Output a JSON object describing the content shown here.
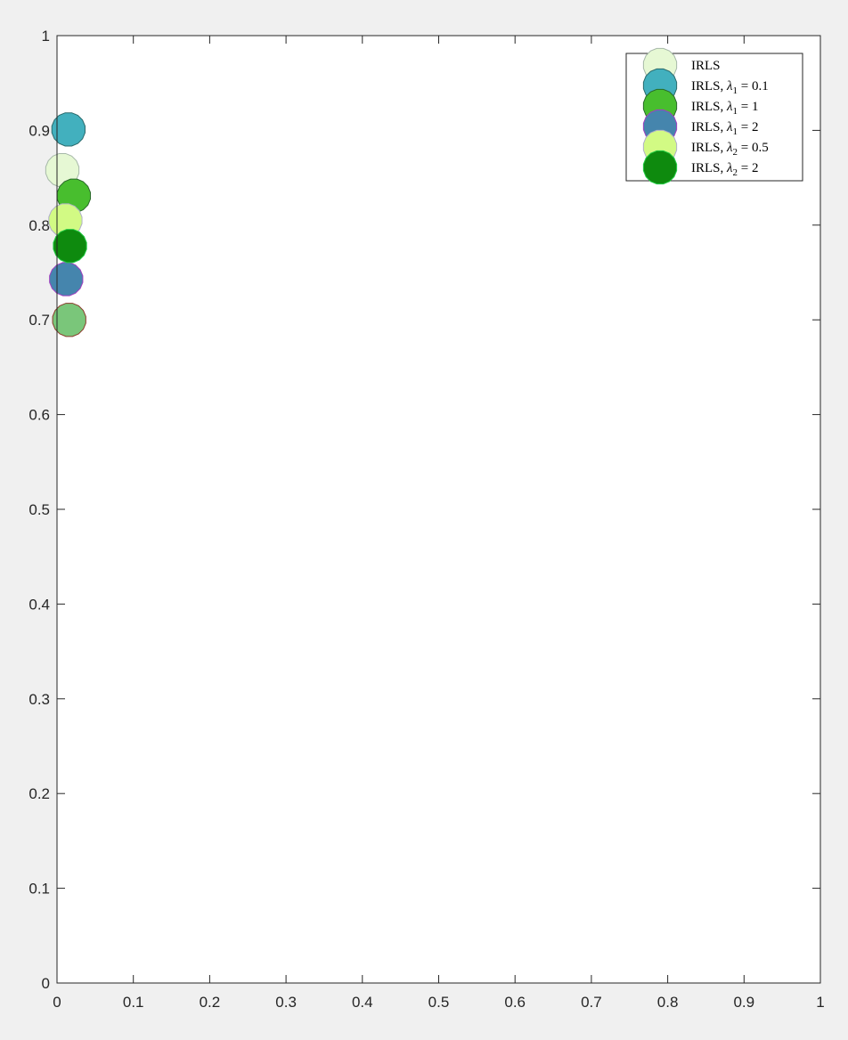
{
  "chart_data": {
    "type": "scatter",
    "title": "",
    "xlabel": "",
    "ylabel": "",
    "xlim": [
      0,
      1
    ],
    "ylim": [
      0,
      1
    ],
    "grid": false,
    "box": true,
    "legend_placement": "top-right",
    "x_ticks": [
      "0",
      "0.1",
      "0.2",
      "0.3",
      "0.4",
      "0.5",
      "0.6",
      "0.7",
      "0.8",
      "0.9",
      "1"
    ],
    "y_ticks": [
      "0",
      "0.1",
      "0.2",
      "0.3",
      "0.4",
      "0.5",
      "0.6",
      "0.7",
      "0.8",
      "0.9",
      "1"
    ],
    "series": [
      {
        "name": "IRLS",
        "legend_text": "IRLS",
        "color": "#e6f8d4",
        "edge": "#a6b8a8",
        "in_legend": true,
        "points": [
          {
            "x": 0.007,
            "y": 0.858
          }
        ]
      },
      {
        "name": "IRLS, λ1 = 0.1",
        "legend_prefix": "IRLS, ",
        "legend_sym": "λ",
        "legend_sub": "1",
        "legend_eq": " = 0.1",
        "color": "#42b0be",
        "edge": "#2a6a6c",
        "in_legend": true,
        "points": [
          {
            "x": 0.015,
            "y": 0.901
          }
        ]
      },
      {
        "name": "IRLS, λ1 = 1",
        "legend_prefix": "IRLS, ",
        "legend_sym": "λ",
        "legend_sub": "1",
        "legend_eq": " = 1",
        "color": "#48be2e",
        "edge": "#2a6a2a",
        "in_legend": true,
        "points": [
          {
            "x": 0.022,
            "y": 0.831
          }
        ]
      },
      {
        "name": "IRLS, λ1 = 2",
        "legend_prefix": "IRLS, ",
        "legend_sym": "λ",
        "legend_sub": "1",
        "legend_eq": " = 2",
        "color": "#4585ad",
        "edge": "#a040c0",
        "in_legend": true,
        "points": [
          {
            "x": 0.012,
            "y": 0.743
          }
        ]
      },
      {
        "name": "IRLS, λ2 = 0.5",
        "legend_prefix": "IRLS, ",
        "legend_sym": "λ",
        "legend_sub": "2",
        "legend_eq": " = 0.5",
        "color": "#d2fa84",
        "edge": "#b0b0c8",
        "in_legend": true,
        "points": [
          {
            "x": 0.011,
            "y": 0.805
          }
        ]
      },
      {
        "name": "IRLS, λ2 = 2",
        "legend_prefix": "IRLS, ",
        "legend_sym": "λ",
        "legend_sub": "2",
        "legend_eq": " = 2",
        "color": "#0e8a0e",
        "edge": "#22cc44",
        "in_legend": true,
        "points": [
          {
            "x": 0.017,
            "y": 0.778
          }
        ]
      },
      {
        "name": "",
        "color": "#7ac67a",
        "edge": "#8a3a2a",
        "in_legend": false,
        "points": [
          {
            "x": 0.016,
            "y": 0.7
          }
        ]
      }
    ]
  }
}
